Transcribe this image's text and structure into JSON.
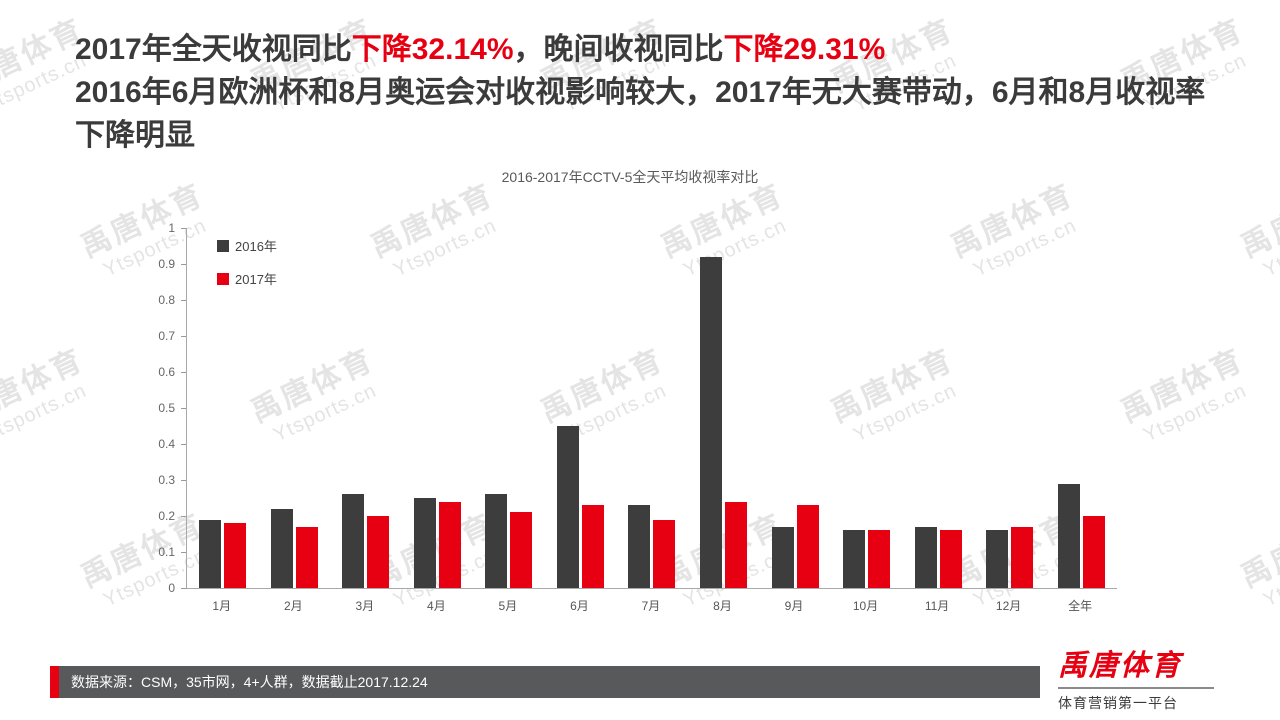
{
  "header": {
    "line1_part1": "2017年全天收视同比",
    "line1_red1": "下降32.14%",
    "line1_part2": "，晚间收视同比",
    "line1_red2": "下降29.31%",
    "line2": "2016年6月欧洲杯和8月奥运会对收视影响较大，2017年无大赛带动，6月和8月收视率下降明显"
  },
  "chart_data": {
    "type": "bar",
    "title": "2016-2017年CCTV-5全天平均收视率对比",
    "categories": [
      "1月",
      "2月",
      "3月",
      "4月",
      "5月",
      "6月",
      "7月",
      "8月",
      "9月",
      "10月",
      "11月",
      "12月",
      "全年"
    ],
    "series": [
      {
        "name": "2016年",
        "color": "#3d3d3d",
        "values": [
          0.19,
          0.22,
          0.26,
          0.25,
          0.26,
          0.45,
          0.23,
          0.92,
          0.17,
          0.16,
          0.17,
          0.16,
          0.29
        ]
      },
      {
        "name": "2017年",
        "color": "#e60012",
        "values": [
          0.18,
          0.17,
          0.2,
          0.24,
          0.21,
          0.23,
          0.19,
          0.24,
          0.23,
          0.16,
          0.16,
          0.17,
          0.2
        ]
      }
    ],
    "ylim": [
      0,
      1
    ],
    "yticks": [
      1,
      0.9,
      0.8,
      0.7,
      0.6,
      0.5,
      0.4,
      0.3,
      0.2,
      0.1,
      0
    ],
    "legend_position": "top-left",
    "grid": false,
    "xlabel": "",
    "ylabel": ""
  },
  "footer": {
    "source": "数据来源：CSM，35市网，4+人群，数据截止2017.12.24",
    "logo": "禹唐体育",
    "slogan": "体育营销第一平台"
  },
  "watermark": {
    "line1": "禹唐体育",
    "line2": "Ytsports.cn"
  }
}
